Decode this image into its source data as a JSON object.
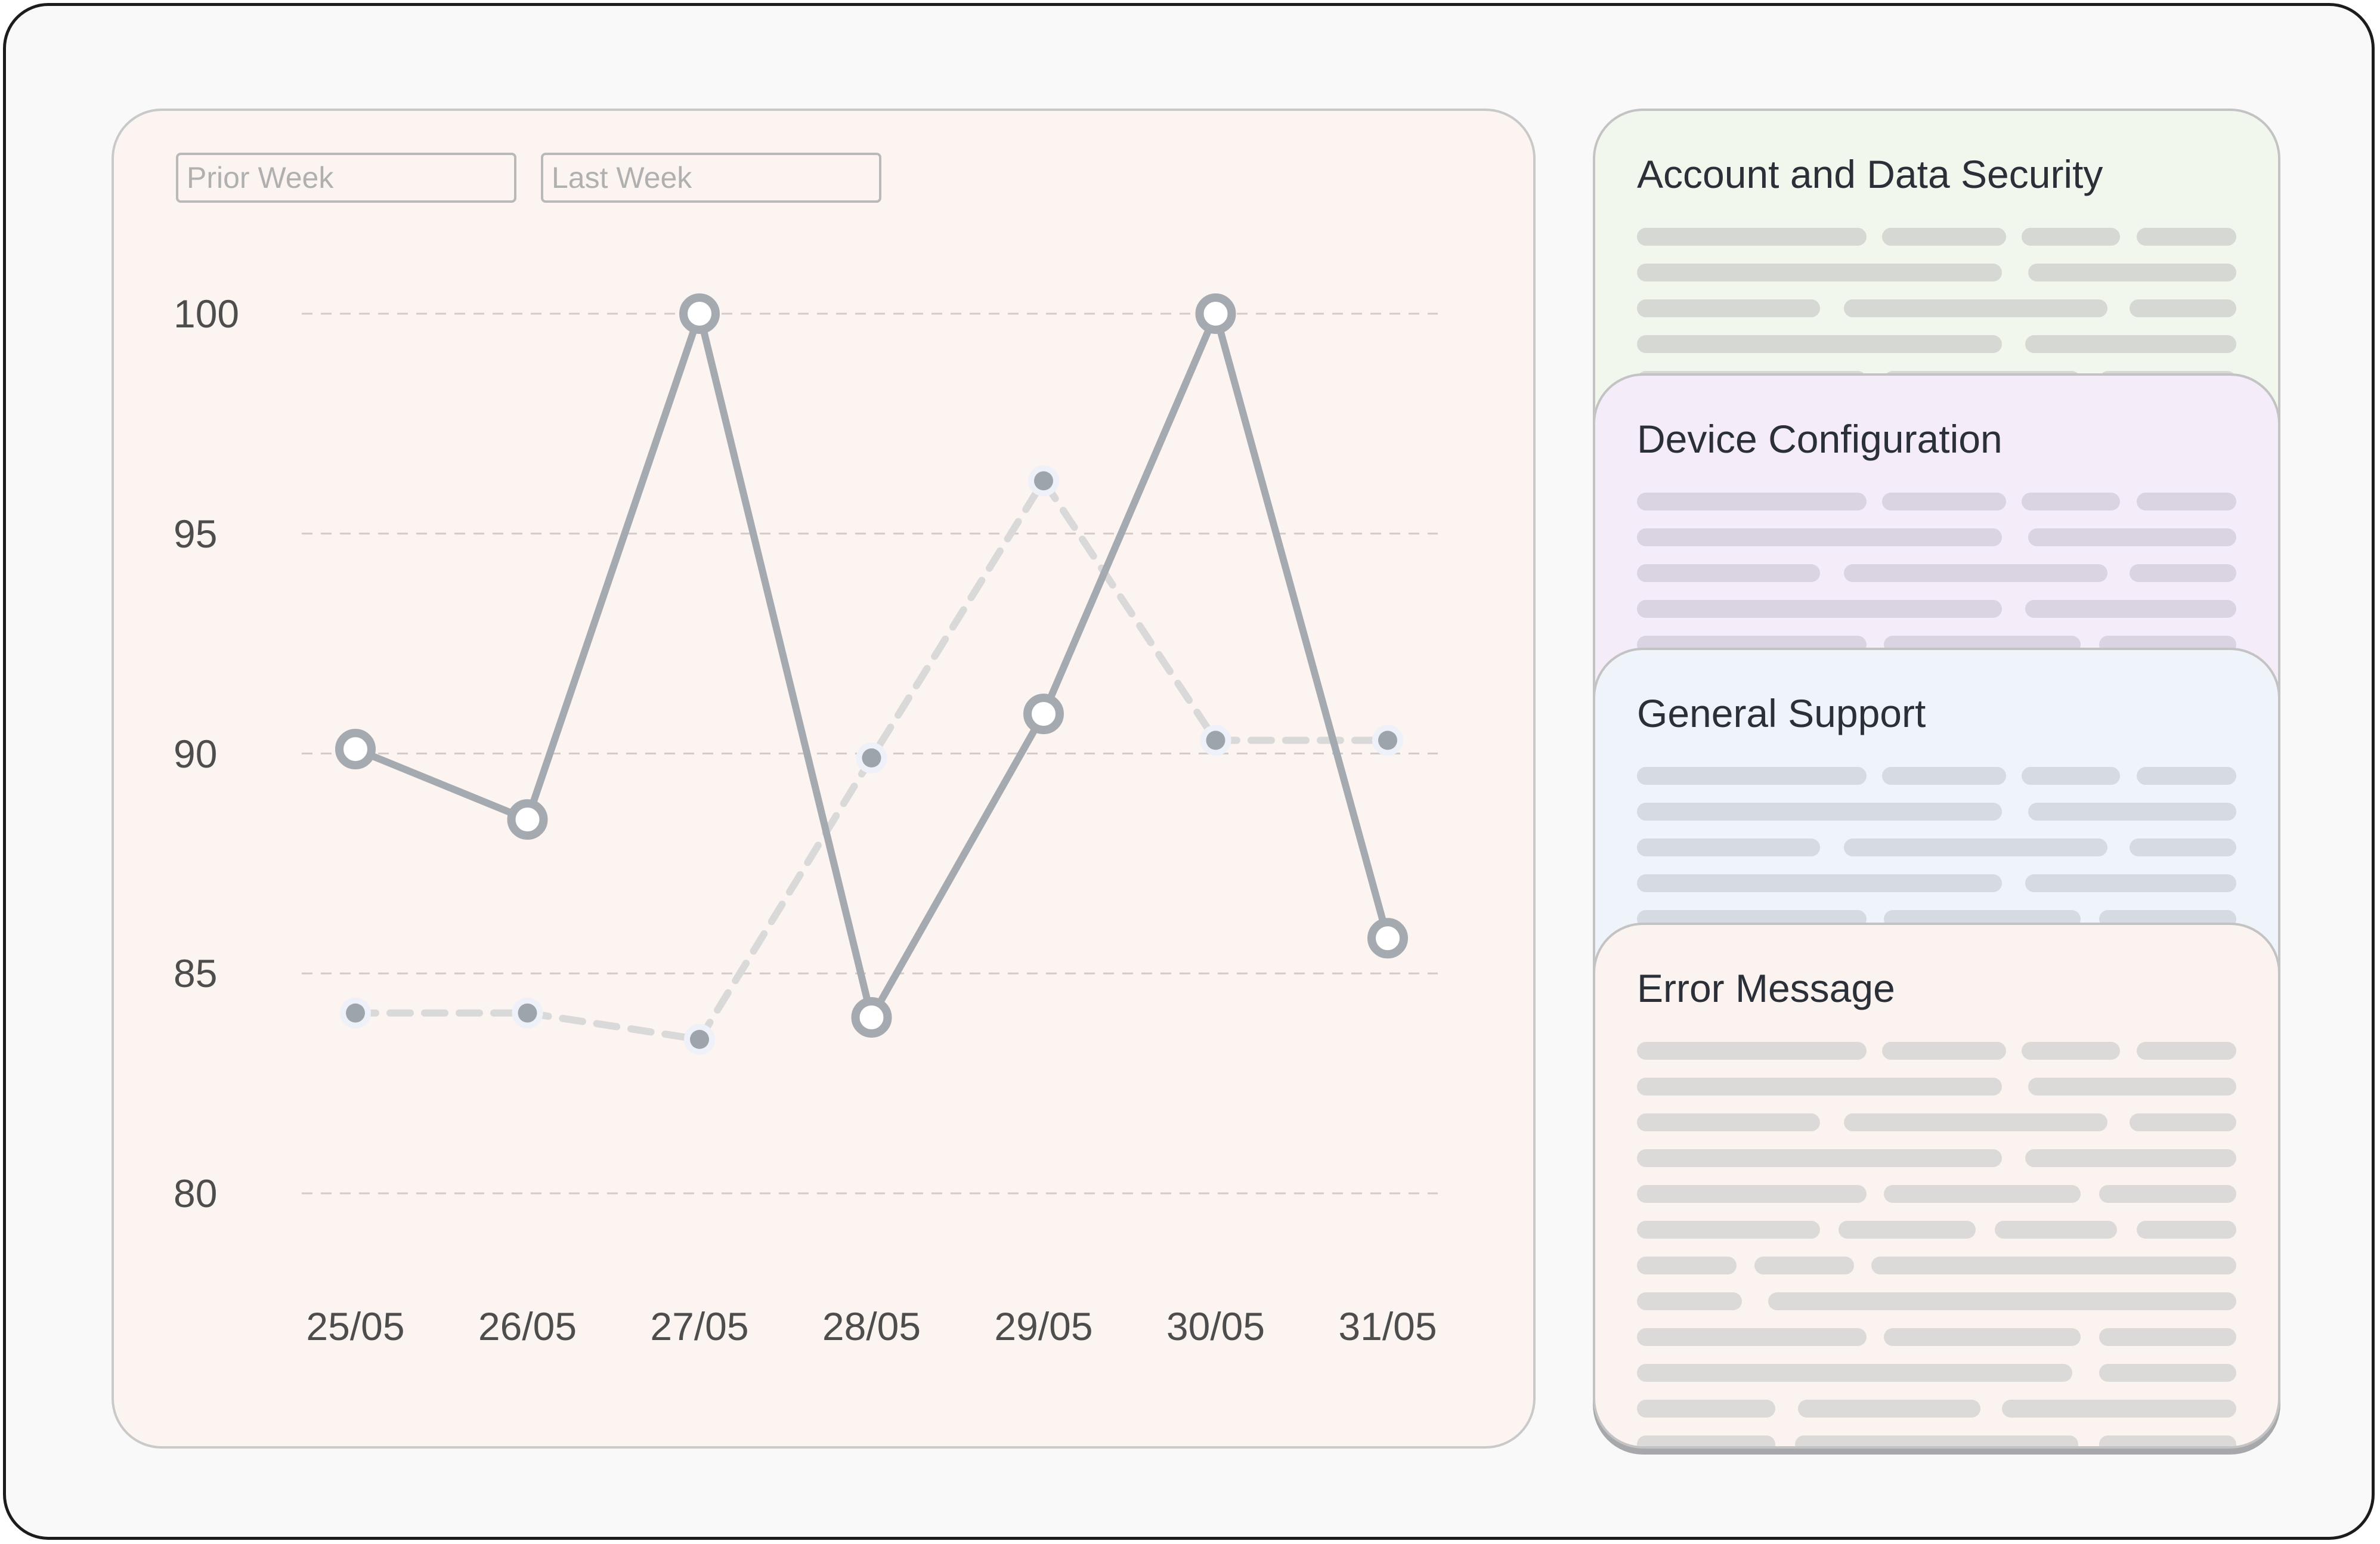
{
  "chart_data": {
    "type": "line",
    "x": [
      "25/05",
      "26/05",
      "27/05",
      "28/05",
      "29/05",
      "30/05",
      "31/05"
    ],
    "yticks": [
      100,
      95,
      90,
      85,
      80
    ],
    "ylim": [
      80,
      100
    ],
    "grid": true,
    "legend_position": "top-left",
    "series": [
      {
        "name": "Prior Week",
        "style": "dashed",
        "color": "#d9d9d9",
        "values": [
          84.1,
          84.1,
          83.5,
          89.9,
          96.2,
          90.3,
          90.3
        ]
      },
      {
        "name": "Last Week",
        "style": "solid",
        "color": "#a4aaaf",
        "values": [
          90.1,
          88.5,
          100,
          84.0,
          90.9,
          100,
          85.8
        ]
      }
    ]
  },
  "topics": [
    {
      "title": "Account and Data Security",
      "bg": "#f1f7ec",
      "bar": "#d6d8d3"
    },
    {
      "title": "Device Configuration",
      "bg": "#f4ecf9",
      "bar": "#dad3e2"
    },
    {
      "title": "General Support",
      "bg": "#eff3fa",
      "bar": "#d5dae3"
    },
    {
      "title": "Error Message",
      "bg": "#fbf3ef",
      "bar": "#dcdad8"
    }
  ]
}
